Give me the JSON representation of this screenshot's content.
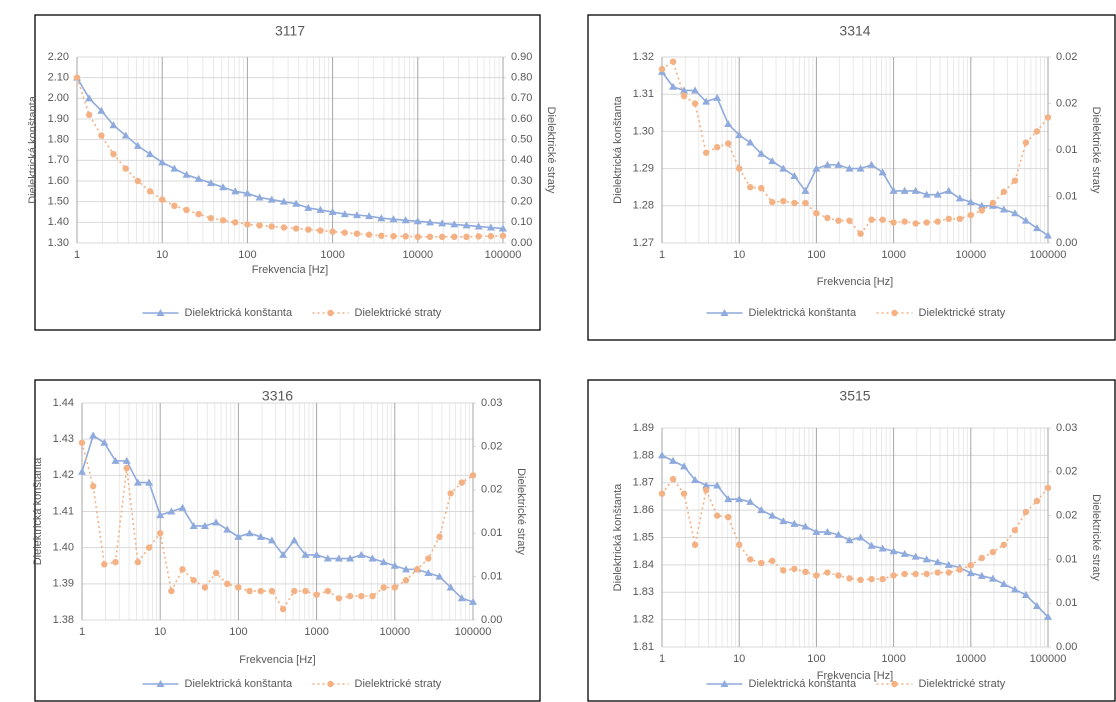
{
  "chart_data": [
    {
      "type": "line",
      "title": "3117",
      "xlabel": "Frekvencia [Hz]",
      "ylabel": "Dielektrická konštanta",
      "y2label": "Dielektrické straty",
      "xscale": "log",
      "xlim": [
        1,
        100000
      ],
      "xticks": [
        1,
        10,
        100,
        1000,
        10000,
        100000
      ],
      "minor_grid": true,
      "legend": "bottom",
      "x": [
        1,
        1.39,
        1.93,
        2.68,
        3.73,
        5.18,
        7.2,
        10,
        13.9,
        19.3,
        26.8,
        37.3,
        51.8,
        72,
        100,
        139,
        193,
        268,
        373,
        518,
        720,
        1000,
        1390,
        1930,
        2680,
        3730,
        5180,
        7200,
        10000,
        13900,
        19300,
        26800,
        37300,
        51800,
        72000,
        100000
      ],
      "ylim": [
        1.3,
        2.2
      ],
      "yticks": [
        {
          "value": 1.3,
          "label": "1.30"
        },
        {
          "value": 1.4,
          "label": "1.40"
        },
        {
          "value": 1.5,
          "label": "1.50"
        },
        {
          "value": 1.6,
          "label": "1.60"
        },
        {
          "value": 1.7,
          "label": "1.70"
        },
        {
          "value": 1.8,
          "label": "1.80"
        },
        {
          "value": 1.9,
          "label": "1.90"
        },
        {
          "value": 2,
          "label": "2.00"
        },
        {
          "value": 2.1,
          "label": "2.10"
        },
        {
          "value": 2.2,
          "label": "2.20"
        }
      ],
      "y2lim": [
        0,
        0.9
      ],
      "y2ticks": [
        {
          "value": 0,
          "label": "0.00"
        },
        {
          "value": 0.1,
          "label": "0.10"
        },
        {
          "value": 0.2,
          "label": "0.20"
        },
        {
          "value": 0.3,
          "label": "0.30"
        },
        {
          "value": 0.4,
          "label": "0.40"
        },
        {
          "value": 0.5,
          "label": "0.50"
        },
        {
          "value": 0.6,
          "label": "0.60"
        },
        {
          "value": 0.7,
          "label": "0.70"
        },
        {
          "value": 0.8,
          "label": "0.80"
        },
        {
          "value": 0.9,
          "label": "0.90"
        }
      ],
      "series": [
        {
          "name": "Dielektrická konštanta",
          "color": "#8faadc",
          "marker": "triangle",
          "dash": "solid",
          "values": [
            2.1,
            2.0,
            1.94,
            1.87,
            1.82,
            1.77,
            1.73,
            1.69,
            1.66,
            1.63,
            1.61,
            1.59,
            1.57,
            1.55,
            1.54,
            1.52,
            1.51,
            1.5,
            1.49,
            1.47,
            1.46,
            1.45,
            1.44,
            1.435,
            1.43,
            1.42,
            1.415,
            1.41,
            1.405,
            1.4,
            1.395,
            1.39,
            1.385,
            1.38,
            1.375,
            1.37
          ]
        },
        {
          "name": "Dielektrické straty",
          "color": "#f4b183",
          "marker": "circle",
          "dash": "dotted",
          "axis": "y2",
          "values": [
            0.8,
            0.62,
            0.52,
            0.43,
            0.36,
            0.3,
            0.25,
            0.21,
            0.18,
            0.16,
            0.14,
            0.12,
            0.11,
            0.1,
            0.09,
            0.085,
            0.08,
            0.075,
            0.07,
            0.065,
            0.06,
            0.055,
            0.05,
            0.045,
            0.04,
            0.035,
            0.033,
            0.032,
            0.03,
            0.03,
            0.03,
            0.03,
            0.03,
            0.032,
            0.033,
            0.035
          ]
        }
      ]
    },
    {
      "type": "line",
      "title": "3314",
      "xlabel": "Frekvencia [Hz]",
      "ylabel": "Dielektrická konštanta",
      "y2label": "Dielektrické straty",
      "xscale": "log",
      "xlim": [
        1,
        100000
      ],
      "xticks": [
        1,
        10,
        100,
        1000,
        10000,
        100000
      ],
      "minor_grid": true,
      "legend": "bottom",
      "x": [
        1,
        1.39,
        1.93,
        2.68,
        3.73,
        5.18,
        7.2,
        10,
        13.9,
        19.3,
        26.8,
        37.3,
        51.8,
        72,
        100,
        139,
        193,
        268,
        373,
        518,
        720,
        1000,
        1390,
        1930,
        2680,
        3730,
        5180,
        7200,
        10000,
        13900,
        19300,
        26800,
        37300,
        51800,
        72000,
        100000
      ],
      "ylim": [
        1.27,
        1.32
      ],
      "yticks": [
        1.27,
        1.28,
        1.29,
        {
          "value": 1.3,
          "label": "1.30"
        },
        1.31,
        1.32
      ],
      "y2lim": [
        0,
        0.02
      ],
      "y2ticks": [
        {
          "value": 0,
          "label": "0.00"
        },
        {
          "value": 0.005,
          "label": "0.01"
        },
        0.01,
        {
          "value": 0.015,
          "label": "0.02"
        },
        0.02
      ],
      "series": [
        {
          "name": "Dielektrická konštanta",
          "color": "#8faadc",
          "marker": "triangle",
          "dash": "solid",
          "values": [
            1.316,
            1.312,
            1.311,
            1.311,
            1.308,
            1.309,
            1.302,
            1.299,
            1.297,
            1.294,
            1.292,
            1.29,
            1.288,
            1.284,
            1.29,
            1.291,
            1.291,
            1.29,
            1.29,
            1.291,
            1.289,
            1.284,
            1.284,
            1.284,
            1.283,
            1.283,
            1.284,
            1.282,
            1.281,
            1.28,
            1.28,
            1.279,
            1.278,
            1.276,
            1.274,
            1.272
          ]
        },
        {
          "name": "Dielektrické straty",
          "color": "#f4b183",
          "marker": "circle",
          "dash": "dotted",
          "axis": "y2",
          "values": [
            0.0187,
            0.0195,
            0.0158,
            0.015,
            0.0097,
            0.0103,
            0.0107,
            0.008,
            0.006,
            0.0059,
            0.0044,
            0.0045,
            0.0043,
            0.0043,
            0.0032,
            0.0027,
            0.0024,
            0.0024,
            0.001,
            0.0025,
            0.0025,
            0.0022,
            0.0023,
            0.0021,
            0.0022,
            0.0023,
            0.0026,
            0.0026,
            0.003,
            0.0035,
            0.0043,
            0.0055,
            0.0067,
            0.0108,
            0.012,
            0.0135
          ]
        }
      ]
    },
    {
      "type": "line",
      "title": "3316",
      "xlabel": "Frekvencia [Hz]",
      "ylabel": "Dielektrická konštanta",
      "y2label": "Dielektrické straty",
      "xscale": "log",
      "xlim": [
        1,
        100000
      ],
      "xticks": [
        1,
        10,
        100,
        1000,
        10000,
        100000
      ],
      "minor_grid": true,
      "legend": "bottom",
      "x": [
        1,
        1.39,
        1.93,
        2.68,
        3.73,
        5.18,
        7.2,
        10,
        13.9,
        19.3,
        26.8,
        37.3,
        51.8,
        72,
        100,
        139,
        193,
        268,
        373,
        518,
        720,
        1000,
        1390,
        1930,
        2680,
        3730,
        5180,
        7200,
        10000,
        13900,
        19300,
        26800,
        37300,
        51800,
        72000,
        100000
      ],
      "ylim": [
        1.38,
        1.44
      ],
      "yticks": [
        1.38,
        1.39,
        {
          "value": 1.4,
          "label": "1.40"
        },
        1.41,
        1.42,
        1.43,
        1.44
      ],
      "y2lim": [
        0,
        0.03
      ],
      "y2ticks": [
        {
          "value": 0,
          "label": "0.00"
        },
        {
          "value": 0.006,
          "label": "0.01"
        },
        {
          "value": 0.012,
          "label": "0.01"
        },
        {
          "value": 0.018,
          "label": "0.02"
        },
        {
          "value": 0.024,
          "label": "0.02"
        },
        {
          "value": 0.03,
          "label": "0.03"
        }
      ],
      "series": [
        {
          "name": "Dielektrická konštanta",
          "color": "#8faadc",
          "marker": "triangle",
          "dash": "solid",
          "values": [
            1.421,
            1.431,
            1.429,
            1.424,
            1.424,
            1.418,
            1.418,
            1.409,
            1.41,
            1.411,
            1.406,
            1.406,
            1.407,
            1.405,
            1.403,
            1.404,
            1.403,
            1.402,
            1.398,
            1.402,
            1.398,
            1.398,
            1.397,
            1.397,
            1.397,
            1.398,
            1.397,
            1.396,
            1.395,
            1.394,
            1.394,
            1.393,
            1.392,
            1.389,
            1.386,
            1.385
          ]
        },
        {
          "name": "Dielektrické straty",
          "color": "#f4b183",
          "marker": "circle",
          "dash": "dotted",
          "axis": "y2",
          "values": [
            0.0245,
            0.0185,
            0.0077,
            0.008,
            0.021,
            0.008,
            0.01,
            0.012,
            0.004,
            0.007,
            0.0055,
            0.0045,
            0.0065,
            0.005,
            0.0045,
            0.004,
            0.004,
            0.004,
            0.0015,
            0.004,
            0.004,
            0.0035,
            0.004,
            0.003,
            0.0033,
            0.0033,
            0.0033,
            0.0045,
            0.0045,
            0.0055,
            0.007,
            0.0085,
            0.0115,
            0.0175,
            0.019,
            0.02
          ]
        }
      ]
    },
    {
      "type": "line",
      "title": "3515",
      "xlabel": "Frekvencia [Hz]",
      "ylabel": "Dielektrická konštanta",
      "y2label": "Dielektrické straty",
      "xscale": "log",
      "xlim": [
        1,
        100000
      ],
      "xticks": [
        1,
        10,
        100,
        1000,
        10000,
        100000
      ],
      "minor_grid": true,
      "legend": "bottom",
      "x": [
        1,
        1.39,
        1.93,
        2.68,
        3.73,
        5.18,
        7.2,
        10,
        13.9,
        19.3,
        26.8,
        37.3,
        51.8,
        72,
        100,
        139,
        193,
        268,
        373,
        518,
        720,
        1000,
        1390,
        1930,
        2680,
        3730,
        5180,
        7200,
        10000,
        13900,
        19300,
        26800,
        37300,
        51800,
        72000,
        100000
      ],
      "ylim": [
        1.81,
        1.89
      ],
      "yticks": [
        1.81,
        1.82,
        1.83,
        1.84,
        1.85,
        1.86,
        1.87,
        1.88,
        1.89
      ],
      "y2lim": [
        0,
        0.03
      ],
      "y2ticks": [
        {
          "value": 0,
          "label": "0.00"
        },
        {
          "value": 0.006,
          "label": "0.01"
        },
        {
          "value": 0.012,
          "label": "0.01"
        },
        {
          "value": 0.018,
          "label": "0.02"
        },
        {
          "value": 0.024,
          "label": "0.02"
        },
        {
          "value": 0.03,
          "label": "0.03"
        }
      ],
      "series": [
        {
          "name": "Dielektrická konštanta",
          "color": "#8faadc",
          "marker": "triangle",
          "dash": "solid",
          "values": [
            1.88,
            1.878,
            1.876,
            1.871,
            1.869,
            1.869,
            1.864,
            1.864,
            1.863,
            1.86,
            1.858,
            1.856,
            1.855,
            1.854,
            1.852,
            1.852,
            1.851,
            1.849,
            1.85,
            1.847,
            1.846,
            1.845,
            1.844,
            1.843,
            1.842,
            1.841,
            1.84,
            1.839,
            1.837,
            1.836,
            1.835,
            1.833,
            1.831,
            1.829,
            1.825,
            1.821
          ]
        },
        {
          "name": "Dielektrické straty",
          "color": "#f4b183",
          "marker": "circle",
          "dash": "dotted",
          "axis": "y2",
          "values": [
            0.021,
            0.023,
            0.021,
            0.014,
            0.0215,
            0.018,
            0.0178,
            0.014,
            0.012,
            0.0115,
            0.0118,
            0.0105,
            0.0107,
            0.0103,
            0.0098,
            0.0102,
            0.0098,
            0.0094,
            0.0092,
            0.0093,
            0.0093,
            0.0098,
            0.01,
            0.01,
            0.01,
            0.0102,
            0.0102,
            0.0106,
            0.0112,
            0.0122,
            0.013,
            0.014,
            0.016,
            0.0185,
            0.02,
            0.0218
          ]
        }
      ]
    }
  ]
}
